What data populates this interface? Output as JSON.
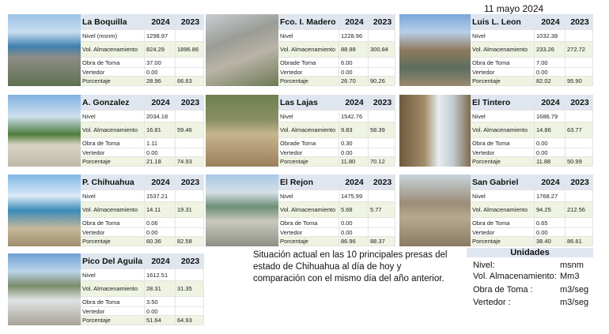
{
  "date": "11 mayo 2024",
  "caption": "Situación actual en las 10 principales presas del estado de Chihuahua al día de hoy y comparación con el mismo día del año anterior.",
  "units": {
    "title": "Unidades",
    "rows": [
      [
        "Nivel:",
        "msnm"
      ],
      [
        "Vol. Almacenamiento:",
        "Mm3"
      ],
      [
        "Obra de Toma :",
        "m3/seg"
      ],
      [
        "Vertedor :",
        "m3/seg"
      ]
    ]
  },
  "dams": [
    {
      "name": "La Boquilla",
      "years": [
        "2024",
        "2023"
      ],
      "rows": [
        [
          "Nivel (msnm)",
          "1298.97"
        ],
        [
          "Vol. Almacenamiento",
          "824.29",
          "1896.86"
        ],
        [
          "Obra de Toma",
          "37.00"
        ],
        [
          "Vertedor",
          "0.00"
        ],
        [
          "Porcentaje",
          "28.96",
          "66.63"
        ]
      ]
    },
    {
      "name": "Fco. I. Madero",
      "years": [
        "2024",
        "2023"
      ],
      "rows": [
        [
          "Nivel",
          "1228.96"
        ],
        [
          "Vol. Almacenamiento",
          "88.98",
          "300.84"
        ],
        [
          "Obrade Toma",
          "6.00"
        ],
        [
          "Vertedor",
          "0.00"
        ],
        [
          "Porcentaje",
          "26.70",
          "90.26"
        ]
      ]
    },
    {
      "name": "Luis L. Leon",
      "years": [
        "2024",
        "2023"
      ],
      "rows": [
        [
          "Nivel",
          "1032.38"
        ],
        [
          "Vol. Almacenamiento",
          "233.26",
          "272.72"
        ],
        [
          "Obra de Toma",
          "7.00"
        ],
        [
          "Vertedor",
          "0.00"
        ],
        [
          "Porcentaje",
          "82.02",
          "95.90"
        ]
      ]
    },
    {
      "name": "A. Gonzalez",
      "years": [
        "2024",
        "2023"
      ],
      "rows": [
        [
          "Nivel",
          "2034.18"
        ],
        [
          "Vol. Almacenamiento",
          "16.81",
          "59.46"
        ],
        [
          "Obra de Toma",
          "1.11"
        ],
        [
          "Vertedor",
          "0.00"
        ],
        [
          "Porcentaje",
          "21.18",
          "74.93"
        ]
      ]
    },
    {
      "name": "Las Lajas",
      "years": [
        "2024",
        "2023"
      ],
      "rows": [
        [
          "Nivel",
          "1542.76"
        ],
        [
          "Vol. Almacenamiento",
          "9.83",
          "58.39"
        ],
        [
          "Obrade Toma",
          "0.30"
        ],
        [
          "Vertedor",
          "0.00"
        ],
        [
          "Porcentaje",
          "11.80",
          "70.12"
        ]
      ]
    },
    {
      "name": "El Tintero",
      "years": [
        "2024",
        "2023"
      ],
      "rows": [
        [
          "Nivel",
          "1686.79"
        ],
        [
          "Vol. Almacenamiento",
          "14.86",
          "63.77"
        ],
        [
          "Obra de Toma",
          "0.00"
        ],
        [
          "Vertedor",
          "0.00"
        ],
        [
          "Porcentaje",
          "11.88",
          "50.99"
        ]
      ]
    },
    {
      "name": "P. Chihuahua",
      "years": [
        "2024",
        "2023"
      ],
      "rows": [
        [
          "Nivel",
          "1537.21"
        ],
        [
          "Vol. Almacenamiento",
          "14.11",
          "19.31"
        ],
        [
          "Obra de Toma",
          "0.06"
        ],
        [
          "Vertedor",
          "0.00"
        ],
        [
          "Porcentaje",
          "60.36",
          "82.58"
        ]
      ]
    },
    {
      "name": "El Rejon",
      "years": [
        "2024",
        "2023"
      ],
      "rows": [
        [
          "Nivel",
          "1475.99"
        ],
        [
          "Vol. Almacenamiento",
          "5.68",
          "5.77"
        ],
        [
          "Obra de Toma",
          "0.00"
        ],
        [
          "Vertedor",
          "0.00"
        ],
        [
          "Porcentaje",
          "86.96",
          "88.37"
        ]
      ]
    },
    {
      "name": "San Gabriel",
      "years": [
        "2024",
        "2023"
      ],
      "rows": [
        [
          "Nivel",
          "1768.27"
        ],
        [
          "Vol. Almacenamiento",
          "94.25",
          "212.56"
        ],
        [
          "Obra de Toma",
          "0.65"
        ],
        [
          "Vertedor",
          "0.00"
        ],
        [
          "Porcentaje",
          "38.40",
          "86.61"
        ]
      ]
    },
    {
      "name": "Pico Del Aguila",
      "years": [
        "2024",
        "2023"
      ],
      "rows": [
        [
          "Nivel",
          "1612.51"
        ],
        [
          "Vol. Almacenamiento",
          "28.31",
          "31.35"
        ],
        [
          "Obra de Toma",
          "3.50"
        ],
        [
          "Vertedor",
          "0.00"
        ],
        [
          "Porcentaje",
          "51.64",
          "64.93"
        ]
      ]
    }
  ]
}
